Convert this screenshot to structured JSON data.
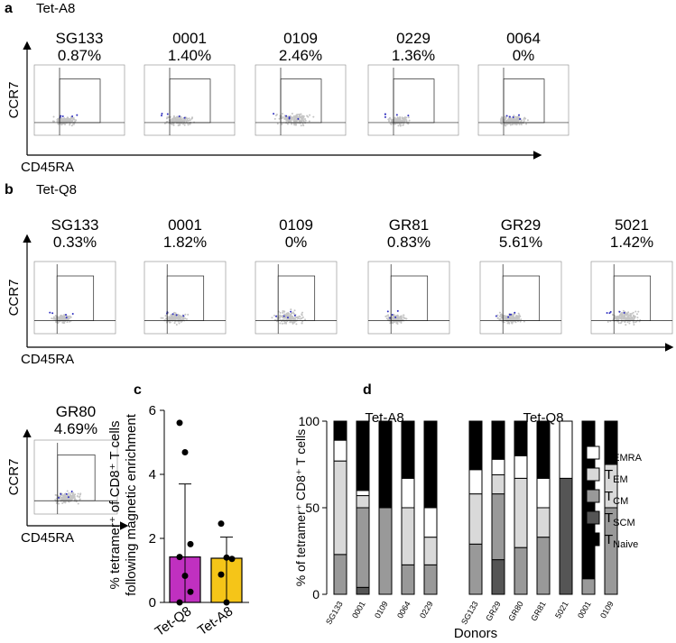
{
  "panels": {
    "a": {
      "letter": "a",
      "tetramer": "Tet-A8",
      "y_axis": "CCR7",
      "x_axis": "CD45RA",
      "plots": [
        {
          "donor": "SG133",
          "percent": "0.87%"
        },
        {
          "donor": "0001",
          "percent": "1.40%"
        },
        {
          "donor": "0109",
          "percent": "2.46%"
        },
        {
          "donor": "0229",
          "percent": "1.36%"
        },
        {
          "donor": "0064",
          "percent": "0%"
        }
      ]
    },
    "b": {
      "letter": "b",
      "tetramer": "Tet-Q8",
      "y_axis": "CCR7",
      "x_axis": "CD45RA",
      "plots": [
        {
          "donor": "SG133",
          "percent": "0.33%"
        },
        {
          "donor": "0001",
          "percent": "1.82%"
        },
        {
          "donor": "0109",
          "percent": "0%"
        },
        {
          "donor": "GR81",
          "percent": "0.83%"
        },
        {
          "donor": "GR29",
          "percent": "5.61%"
        },
        {
          "donor": "5021",
          "percent": "1.42%"
        }
      ]
    },
    "b_extra": {
      "donor": "GR80",
      "percent": "4.69%",
      "y_axis": "CCR7",
      "x_axis": "CD45RA"
    }
  },
  "chart_data": [
    {
      "type": "bar",
      "panel_label": "c",
      "y_label": [
        "% tetramer⁺ of CD8⁺ T cells",
        "following magnetic enrichment"
      ],
      "categories": [
        "Tet-Q8",
        "Tet-A8"
      ],
      "values": [
        1.42,
        1.38
      ],
      "colors": [
        "#c030c0",
        "#f5c518"
      ],
      "error_low": [
        0,
        0
      ],
      "error_high": [
        3.7,
        2.04
      ],
      "points": [
        [
          5.61,
          4.69,
          1.82,
          1.42,
          0.83,
          0.33,
          0
        ],
        [
          2.46,
          1.4,
          1.36,
          0.87,
          0
        ]
      ],
      "ylim": [
        0,
        6
      ],
      "yticks": [
        0,
        2,
        4,
        6
      ]
    },
    {
      "type": "stacked_bar",
      "panel_label": "d",
      "y_label": "% of tetramer⁺ CD8⁺ T cells",
      "x_label": "Donors",
      "group_labels": [
        "Tet-A8",
        "Tet-Q8"
      ],
      "categories": [
        "SG133",
        "0001",
        "0109",
        "0064",
        "0229",
        null,
        "SG133",
        "GR29",
        "GR80",
        "GR81",
        "5021",
        "0001",
        "0109"
      ],
      "series": [
        {
          "name": "TSCM",
          "color": "#555555",
          "values": [
            0,
            4,
            0,
            0,
            0,
            null,
            0,
            20,
            0,
            0,
            67,
            0,
            0
          ]
        },
        {
          "name": "TCM",
          "color": "#999999",
          "values": [
            23,
            46,
            50,
            17,
            17,
            null,
            29,
            38,
            27,
            33,
            0,
            9,
            50
          ]
        },
        {
          "name": "TEM",
          "color": "#d9d9d9",
          "values": [
            54,
            7,
            0,
            33,
            16,
            null,
            29,
            11,
            40,
            17,
            0,
            0,
            25
          ]
        },
        {
          "name": "TEMRA",
          "color": "#ffffff",
          "values": [
            12,
            3,
            0,
            17,
            17,
            null,
            14,
            9,
            13,
            17,
            33,
            0,
            0
          ]
        },
        {
          "name": "TNaive",
          "color": "#000000",
          "values": [
            11,
            40,
            50,
            33,
            50,
            null,
            28,
            22,
            20,
            33,
            0,
            91,
            25
          ]
        }
      ],
      "legend_order": [
        3,
        2,
        1,
        0,
        4
      ],
      "ylim": [
        0,
        100
      ],
      "yticks": [
        0,
        50,
        100
      ]
    }
  ]
}
